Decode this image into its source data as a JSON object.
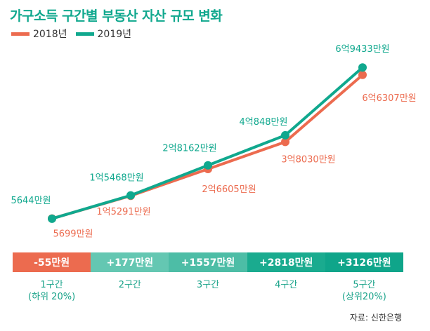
{
  "title": "가구소득 구간별 부동산 자산 규모 변화",
  "source": "자료: 신한은행",
  "chart_data": {
    "type": "line",
    "categories": [
      "1구간",
      "2구간",
      "3구간",
      "4구간",
      "5구간"
    ],
    "category_notes": [
      "(하위 20%)",
      "",
      "",
      "",
      "(상위20%)"
    ],
    "unit": "만원",
    "legend_position": "top-left",
    "grid": false,
    "series": [
      {
        "name": "2018년",
        "color": "#ec6b4f",
        "values": [
          5699,
          15291,
          26605,
          38030,
          66307
        ],
        "labels": [
          "5699만원",
          "1억5291만원",
          "2억6605만원",
          "3억8030만원",
          "6억6307만원"
        ]
      },
      {
        "name": "2019년",
        "color": "#10a88e",
        "values": [
          5644,
          15468,
          28162,
          40848,
          69433
        ],
        "labels": [
          "5644만원",
          "1억5468만원",
          "2억8162만원",
          "4억848만원",
          "6억9433만원"
        ]
      }
    ],
    "differences": [
      {
        "label": "-55만원",
        "value": -55,
        "color": "#ec6b4f"
      },
      {
        "label": "+177만원",
        "value": 177,
        "color": "#64c7b2"
      },
      {
        "label": "+1557만원",
        "value": 1557,
        "color": "#4dbda6"
      },
      {
        "label": "+2818만원",
        "value": 2818,
        "color": "#1aab8f"
      },
      {
        "label": "+3126만원",
        "value": 3126,
        "color": "#0fa58a"
      }
    ]
  }
}
